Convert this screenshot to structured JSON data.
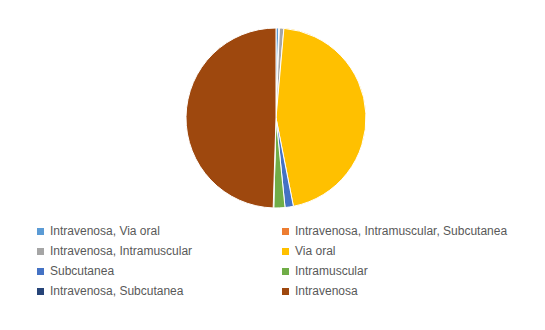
{
  "chart_data": {
    "type": "pie",
    "categories": [
      "Intravenosa, Via oral",
      "Intravenosa, Intramuscular, Subcutanea",
      "Intravenosa, Intramuscular",
      "Via oral",
      "Subcutanea",
      "Intramuscular",
      "Intravenosa, Subcutanea",
      "Intravenosa"
    ],
    "values": [
      0.5,
      0.1,
      0.8,
      45.5,
      1.5,
      2.0,
      0.1,
      49.5
    ],
    "colors": [
      "#5b9bd5",
      "#ed7d31",
      "#a5a5a5",
      "#ffc000",
      "#4472c4",
      "#70ad47",
      "#264478",
      "#9e480e"
    ],
    "legend": "bottom"
  }
}
